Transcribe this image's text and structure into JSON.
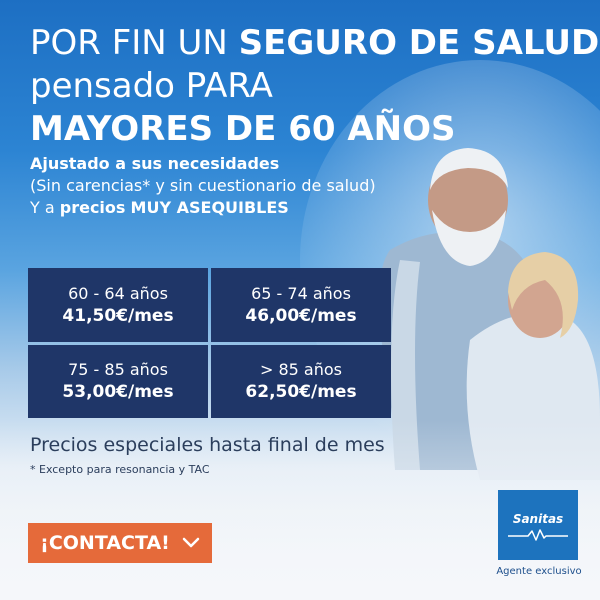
{
  "headline": {
    "line1_pre": "POR FIN UN ",
    "line1_bold": "SEGURO DE SALUD",
    "line2": "pensado PARA",
    "line3": "MAYORES DE 60 AÑOS"
  },
  "subtext": {
    "line1": "Ajustado a sus necesidades",
    "line2": "(Sin carencias* y sin cuestionario de salud)",
    "line3_pre": "Y a ",
    "line3_bold1": "precios",
    "line3_bold2": "MUY ASEQUIBLES"
  },
  "prices": [
    {
      "range": "60 - 64 años",
      "price": "41,50€/mes"
    },
    {
      "range": "65 - 74 años",
      "price": "46,00€/mes"
    },
    {
      "range": "75 - 85 años",
      "price": "53,00€/mes"
    },
    {
      "range": "> 85 años",
      "price": "62,50€/mes"
    }
  ],
  "note": "Precios especiales hasta final de mes",
  "footnote": "* Excepto para resonancia y TAC",
  "cta": {
    "label": "¡CONTACTA!",
    "icon": "chevron-down-icon"
  },
  "logo": {
    "brand": "Sanitas",
    "tagline": "Agente exclusivo"
  },
  "colors": {
    "cell_bg": "#1f3668",
    "cta_bg": "#e56a3a",
    "logo_bg": "#1d73be",
    "text_dark": "#2b3e5c"
  }
}
